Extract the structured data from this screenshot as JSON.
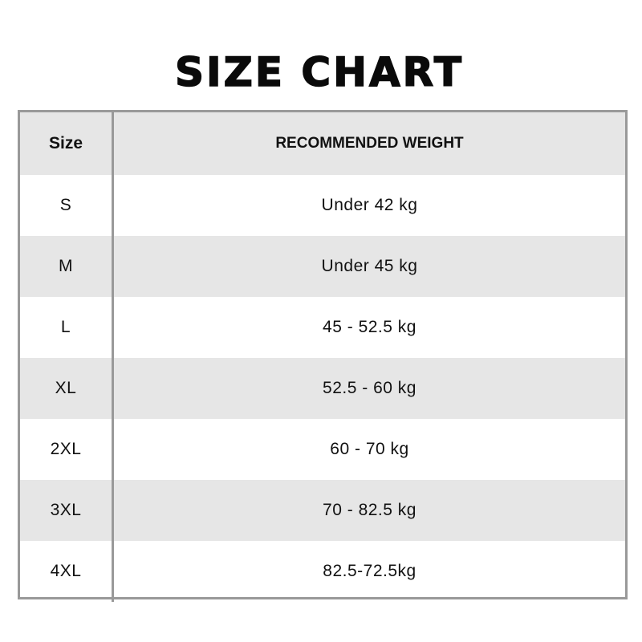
{
  "title": "SIZE CHART",
  "table": {
    "headers": [
      "Size",
      "RECOMMENDED WEIGHT"
    ],
    "rows": [
      {
        "size": "S",
        "weight": "Under 42 kg"
      },
      {
        "size": "M",
        "weight": "Under 45 kg"
      },
      {
        "size": "L",
        "weight": "45 - 52.5 kg"
      },
      {
        "size": "XL",
        "weight": "52.5 - 60 kg"
      },
      {
        "size": "2XL",
        "weight": "60 - 70 kg"
      },
      {
        "size": "3XL",
        "weight": "70 - 82.5 kg"
      },
      {
        "size": "4XL",
        "weight": "82.5-72.5kg"
      }
    ]
  },
  "colors": {
    "border": "#999999",
    "stripe": "#e6e6e6",
    "text": "#111111"
  }
}
